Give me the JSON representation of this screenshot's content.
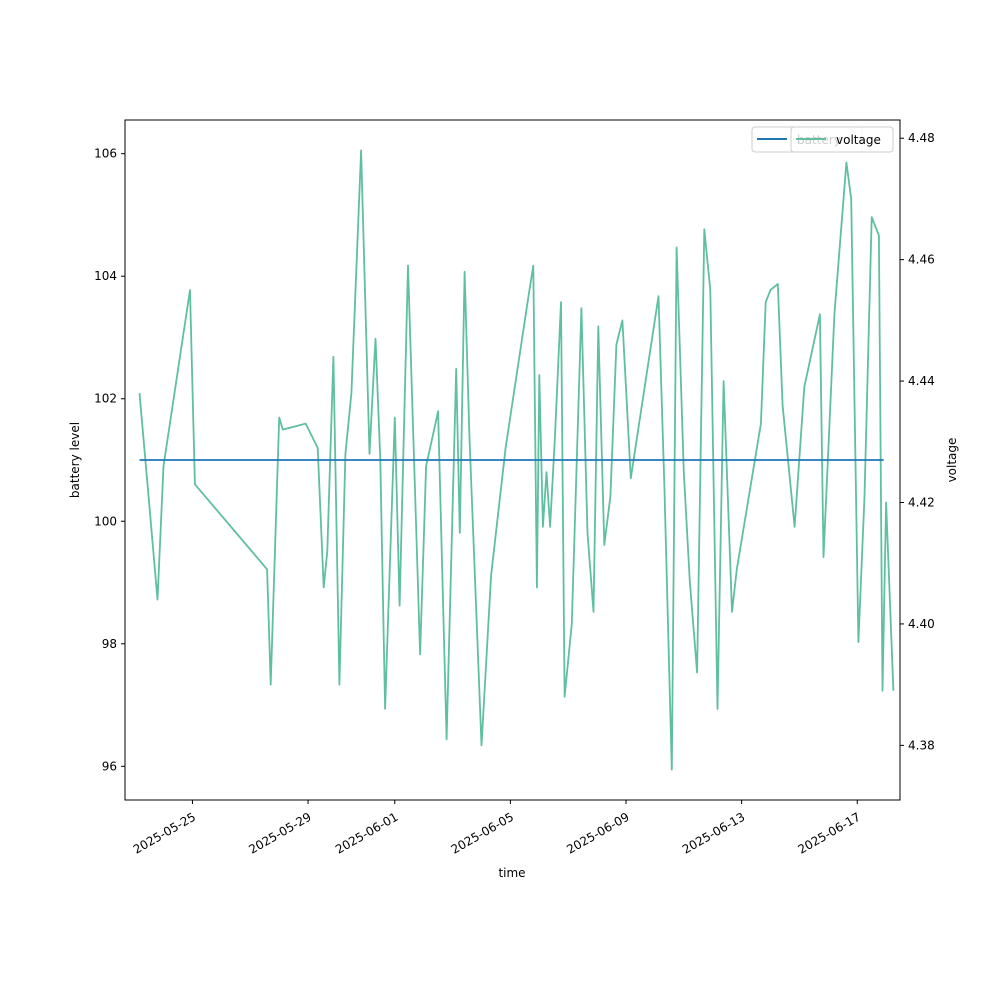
{
  "chart_data": {
    "type": "line",
    "xlabel": "time",
    "ylabel": "battery level",
    "y2label": "voltage",
    "x_ticks": [
      "2025-05-25",
      "2025-05-29",
      "2025-06-01",
      "2025-06-05",
      "2025-06-09",
      "2025-06-13",
      "2025-06-17"
    ],
    "xlim": [
      "2025-05-22T16:00",
      "2025-06-18T11:30"
    ],
    "ylim": [
      95.45,
      106.55
    ],
    "y_ticks": [
      96,
      98,
      100,
      102,
      104,
      106
    ],
    "y2lim": [
      4.371,
      4.483
    ],
    "y2_ticks": [
      4.38,
      4.4,
      4.42,
      4.44,
      4.46,
      4.48
    ],
    "grid": false,
    "legend_location": "top-right",
    "series": [
      {
        "name": "battery",
        "axis": "left",
        "color": "#1f77b4",
        "x": [
          "2025-05-23T04:00",
          "2025-06-17T22:00"
        ],
        "values": [
          101,
          101
        ]
      },
      {
        "name": "voltage",
        "axis": "right",
        "color": "#5fbf9f",
        "x": [
          "2025-05-23T04:00",
          "2025-05-23T12:00",
          "2025-05-23T19:00",
          "2025-05-24T00:00",
          "2025-05-24T22:00",
          "2025-05-25T02:00",
          "2025-05-27T14:00",
          "2025-05-27T17:00",
          "2025-05-28T00:00",
          "2025-05-28T03:00",
          "2025-05-28T22:00",
          "2025-05-29T08:00",
          "2025-05-29T13:00",
          "2025-05-29T16:00",
          "2025-05-29T21:00",
          "2025-05-30T02:00",
          "2025-05-30T07:00",
          "2025-05-30T12:00",
          "2025-05-30T20:00",
          "2025-05-31T03:00",
          "2025-05-31T08:00",
          "2025-05-31T12:00",
          "2025-05-31T16:00",
          "2025-06-01T00:00",
          "2025-06-01T04:00",
          "2025-06-01T11:00",
          "2025-06-01T21:00",
          "2025-06-02T02:00",
          "2025-06-02T12:00",
          "2025-06-02T19:00",
          "2025-06-03T03:00",
          "2025-06-03T06:00",
          "2025-06-03T10:00",
          "2025-06-03T14:00",
          "2025-06-04T00:00",
          "2025-06-04T08:00",
          "2025-06-04T20:00",
          "2025-06-05T15:00",
          "2025-06-05T19:00",
          "2025-06-05T22:00",
          "2025-06-06T00:00",
          "2025-06-06T03:00",
          "2025-06-06T06:00",
          "2025-06-06T09:00",
          "2025-06-06T13:00",
          "2025-06-06T18:00",
          "2025-06-06T21:00",
          "2025-06-07T03:00",
          "2025-06-07T11:00",
          "2025-06-07T16:00",
          "2025-06-07T21:00",
          "2025-06-08T01:00",
          "2025-06-08T06:00",
          "2025-06-08T11:00",
          "2025-06-08T16:00",
          "2025-06-08T21:00",
          "2025-06-09T04:00",
          "2025-06-10T03:00",
          "2025-06-10T08:00",
          "2025-06-10T14:00",
          "2025-06-10T18:00",
          "2025-06-11T00:00",
          "2025-06-11T05:00",
          "2025-06-11T11:00",
          "2025-06-11T17:00",
          "2025-06-11T22:00",
          "2025-06-12T04:00",
          "2025-06-12T09:00",
          "2025-06-12T16:00",
          "2025-06-12T20:00",
          "2025-06-13T16:00",
          "2025-06-13T20:00",
          "2025-06-14T00:00",
          "2025-06-14T06:00",
          "2025-06-14T10:00",
          "2025-06-14T20:00",
          "2025-06-15T04:00",
          "2025-06-15T17:00",
          "2025-06-15T20:00",
          "2025-06-16T05:00",
          "2025-06-16T15:00",
          "2025-06-16T19:00",
          "2025-06-17T01:00",
          "2025-06-17T06:00",
          "2025-06-17T12:00",
          "2025-06-17T18:00",
          "2025-06-17T21:00",
          "2025-06-18T00:00",
          "2025-06-18T06:00"
        ],
        "values": [
          4.438,
          4.42,
          4.404,
          4.426,
          4.455,
          4.423,
          4.409,
          4.39,
          4.434,
          4.432,
          4.433,
          4.429,
          4.406,
          4.412,
          4.444,
          4.39,
          4.428,
          4.438,
          4.478,
          4.428,
          4.447,
          4.427,
          4.386,
          4.434,
          4.403,
          4.459,
          4.395,
          4.426,
          4.435,
          4.381,
          4.442,
          4.415,
          4.458,
          4.431,
          4.38,
          4.408,
          4.429,
          4.454,
          4.459,
          4.406,
          4.441,
          4.416,
          4.425,
          4.416,
          4.431,
          4.453,
          4.388,
          4.4,
          4.452,
          4.415,
          4.402,
          4.449,
          4.413,
          4.421,
          4.446,
          4.45,
          4.424,
          4.454,
          4.422,
          4.376,
          4.462,
          4.425,
          4.407,
          4.392,
          4.465,
          4.455,
          4.386,
          4.44,
          4.402,
          4.409,
          4.433,
          4.453,
          4.455,
          4.456,
          4.436,
          4.416,
          4.439,
          4.451,
          4.411,
          4.451,
          4.476,
          4.47,
          4.397,
          4.421,
          4.467,
          4.464,
          4.389,
          4.42,
          4.389
        ]
      }
    ]
  }
}
